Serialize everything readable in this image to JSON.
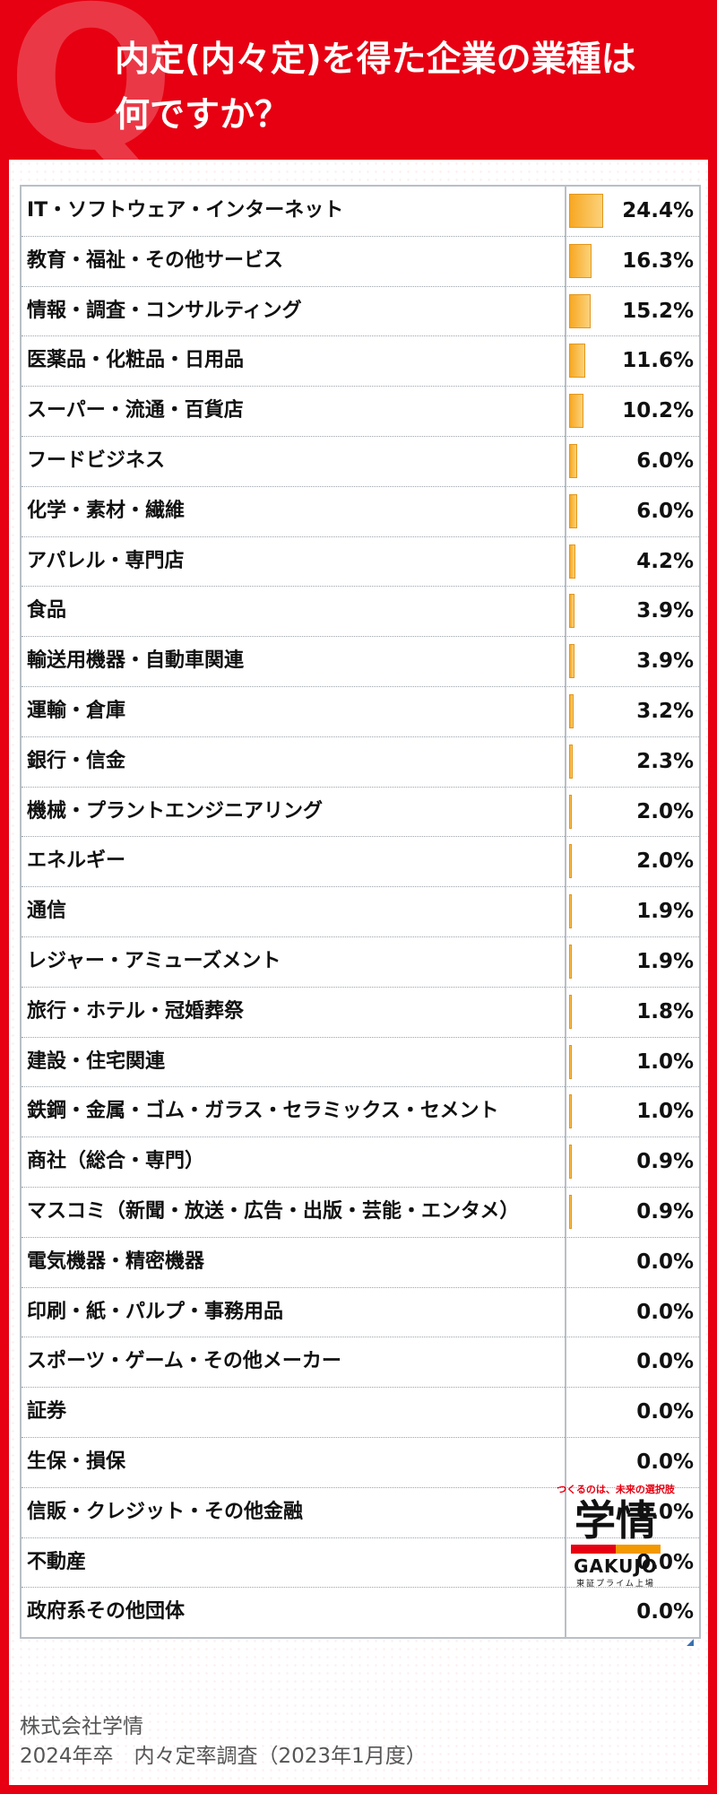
{
  "header": {
    "title_line1": "内定(内々定)を得た企業の業種は",
    "title_line2": "何ですか？",
    "q_mark": "Q"
  },
  "colors": {
    "brand_red": "#e60012",
    "bar_orange": "#f7a823"
  },
  "chart_data": {
    "type": "bar",
    "orientation": "horizontal",
    "title": "内定(内々定)を得た企業の業種は何ですか？",
    "categories": [
      "IT・ソフトウェア・インターネット",
      "教育・福祉・その他サービス",
      "情報・調査・コンサルティング",
      "医薬品・化粧品・日用品",
      "スーパー・流通・百貨店",
      "フードビジネス",
      "化学・素材・繊維",
      "アパレル・専門店",
      "食品",
      "輸送用機器・自動車関連",
      "運輸・倉庫",
      "銀行・信金",
      "機械・プラントエンジニアリング",
      "エネルギー",
      "通信",
      "レジャー・アミューズメント",
      "旅行・ホテル・冠婚葬祭",
      "建設・住宅関連",
      "鉄鋼・金属・ゴム・ガラス・セラミックス・セメント",
      "商社（総合・専門）",
      "マスコミ（新聞・放送・広告・出版・芸能・エンタメ）",
      "電気機器・精密機器",
      "印刷・紙・パルプ・事務用品",
      "スポーツ・ゲーム・その他メーカー",
      "証券",
      "生保・損保",
      "信販・クレジット・その他金融",
      "不動産",
      "政府系その他団体"
    ],
    "values": [
      24.4,
      16.3,
      15.2,
      11.6,
      10.2,
      6.0,
      6.0,
      4.2,
      3.9,
      3.9,
      3.2,
      2.3,
      2.0,
      2.0,
      1.9,
      1.9,
      1.8,
      1.0,
      1.0,
      0.9,
      0.9,
      0.0,
      0.0,
      0.0,
      0.0,
      0.0,
      0.0,
      0.0,
      0.0
    ],
    "value_labels": [
      "24.4%",
      "16.3%",
      "15.2%",
      "11.6%",
      "10.2%",
      "6.0%",
      "6.0%",
      "4.2%",
      "3.9%",
      "3.9%",
      "3.2%",
      "2.3%",
      "2.0%",
      "2.0%",
      "1.9%",
      "1.9%",
      "1.8%",
      "1.0%",
      "1.0%",
      "0.9%",
      "0.9%",
      "0.0%",
      "0.0%",
      "0.0%",
      "0.0%",
      "0.0%",
      "0.0%",
      "0.0%",
      "0.0%"
    ],
    "unit": "%",
    "xlim": [
      0,
      100
    ]
  },
  "footer": {
    "company": "株式会社学情",
    "survey": "2024年卒　内々定率調査（2023年1月度）"
  },
  "logo": {
    "tagline": "つくるのは、未来の選択肢",
    "mark": "学情",
    "english": "GAKUJO",
    "listing": "東証プライム上場"
  }
}
